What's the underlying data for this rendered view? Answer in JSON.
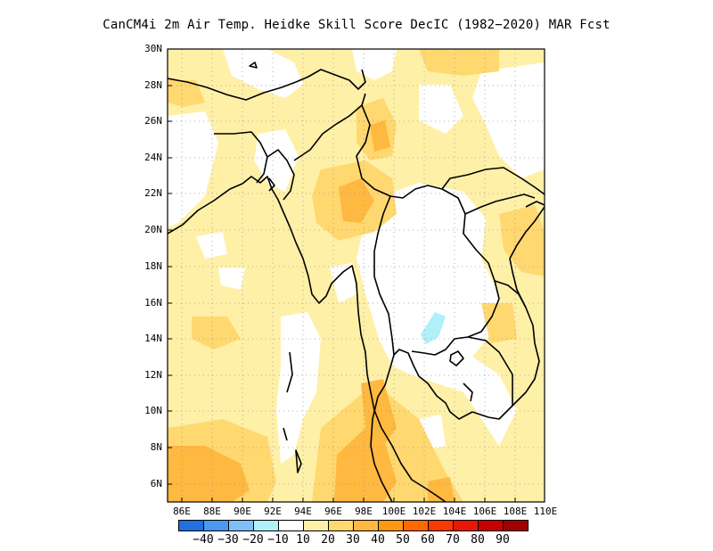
{
  "title": "CanCM4i  2m Air Temp. Heidke Skill Score DecIC (1982−2020) MAR Fcst",
  "map": {
    "lon_range": [
      85,
      110
    ],
    "lat_range": [
      5,
      30
    ],
    "lat_ticks": [
      "30N",
      "28N",
      "26N",
      "24N",
      "22N",
      "20N",
      "18N",
      "16N",
      "14N",
      "12N",
      "10N",
      "8N",
      "6N"
    ],
    "lon_ticks": [
      "86E",
      "88E",
      "90E",
      "92E",
      "94E",
      "96E",
      "98E",
      "100E",
      "102E",
      "104E",
      "106E",
      "108E",
      "110E"
    ],
    "gridlines": "dotted"
  },
  "colorbar": {
    "colors": [
      "#2070e0",
      "#4a98f0",
      "#80c0f8",
      "#b0f0f8",
      "#ffffff",
      "#fff0a8",
      "#ffd870",
      "#ffb840",
      "#ff9a10",
      "#ff6a00",
      "#f83a00",
      "#e81800",
      "#c80000",
      "#a00000"
    ],
    "labels": [
      "−40",
      "−30",
      "−20",
      "−10",
      "10",
      "20",
      "30",
      "40",
      "50",
      "60",
      "70",
      "80",
      "90"
    ]
  }
}
